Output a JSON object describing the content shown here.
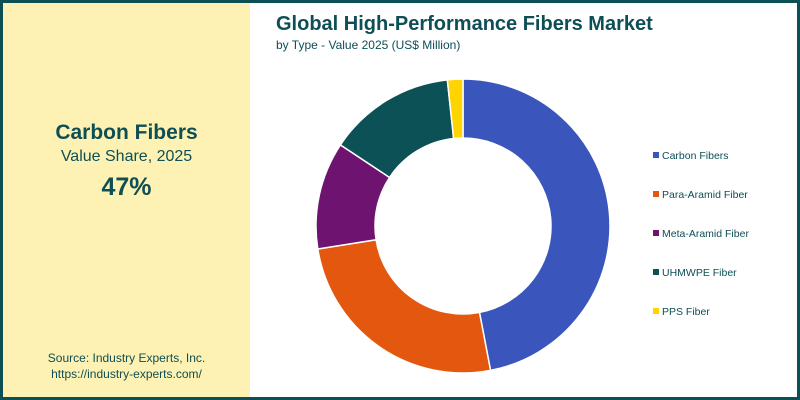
{
  "highlight": {
    "name": "Carbon Fibers",
    "subtitle": "Value Share, 2025",
    "value": "47%"
  },
  "source": {
    "line1": "Source: Industry Experts, Inc.",
    "line2": "https://industry-experts.com/"
  },
  "header": {
    "title": "Global High-Performance Fibers Market",
    "subtitle": "by Type - Value 2025 (US$ Million)"
  },
  "legend": [
    {
      "label": "Carbon Fibers",
      "color": "#3a56bd"
    },
    {
      "label": "Para-Aramid Fiber",
      "color": "#e3570f"
    },
    {
      "label": "Meta-Aramid Fiber",
      "color": "#6e1470"
    },
    {
      "label": "UHMWPE Fiber",
      "color": "#0c5156"
    },
    {
      "label": "PPS Fiber",
      "color": "#ffd400"
    }
  ],
  "chart_data": {
    "type": "pie",
    "subtype": "donut",
    "title": "Global High-Performance Fibers Market",
    "subtitle": "by Type - Value 2025 (US$ Million)",
    "categories": [
      "Carbon Fibers",
      "Para-Aramid Fiber",
      "Meta-Aramid Fiber",
      "UHMWPE Fiber",
      "PPS Fiber"
    ],
    "values": [
      47,
      25.5,
      11.8,
      14.0,
      1.7
    ],
    "unit": "% share (approx.)",
    "colors": [
      "#3a56bd",
      "#e3570f",
      "#6e1470",
      "#0c5156",
      "#ffd400"
    ],
    "legend_position": "right",
    "annotation": "Carbon Fibers Value Share, 2025: 47%"
  }
}
